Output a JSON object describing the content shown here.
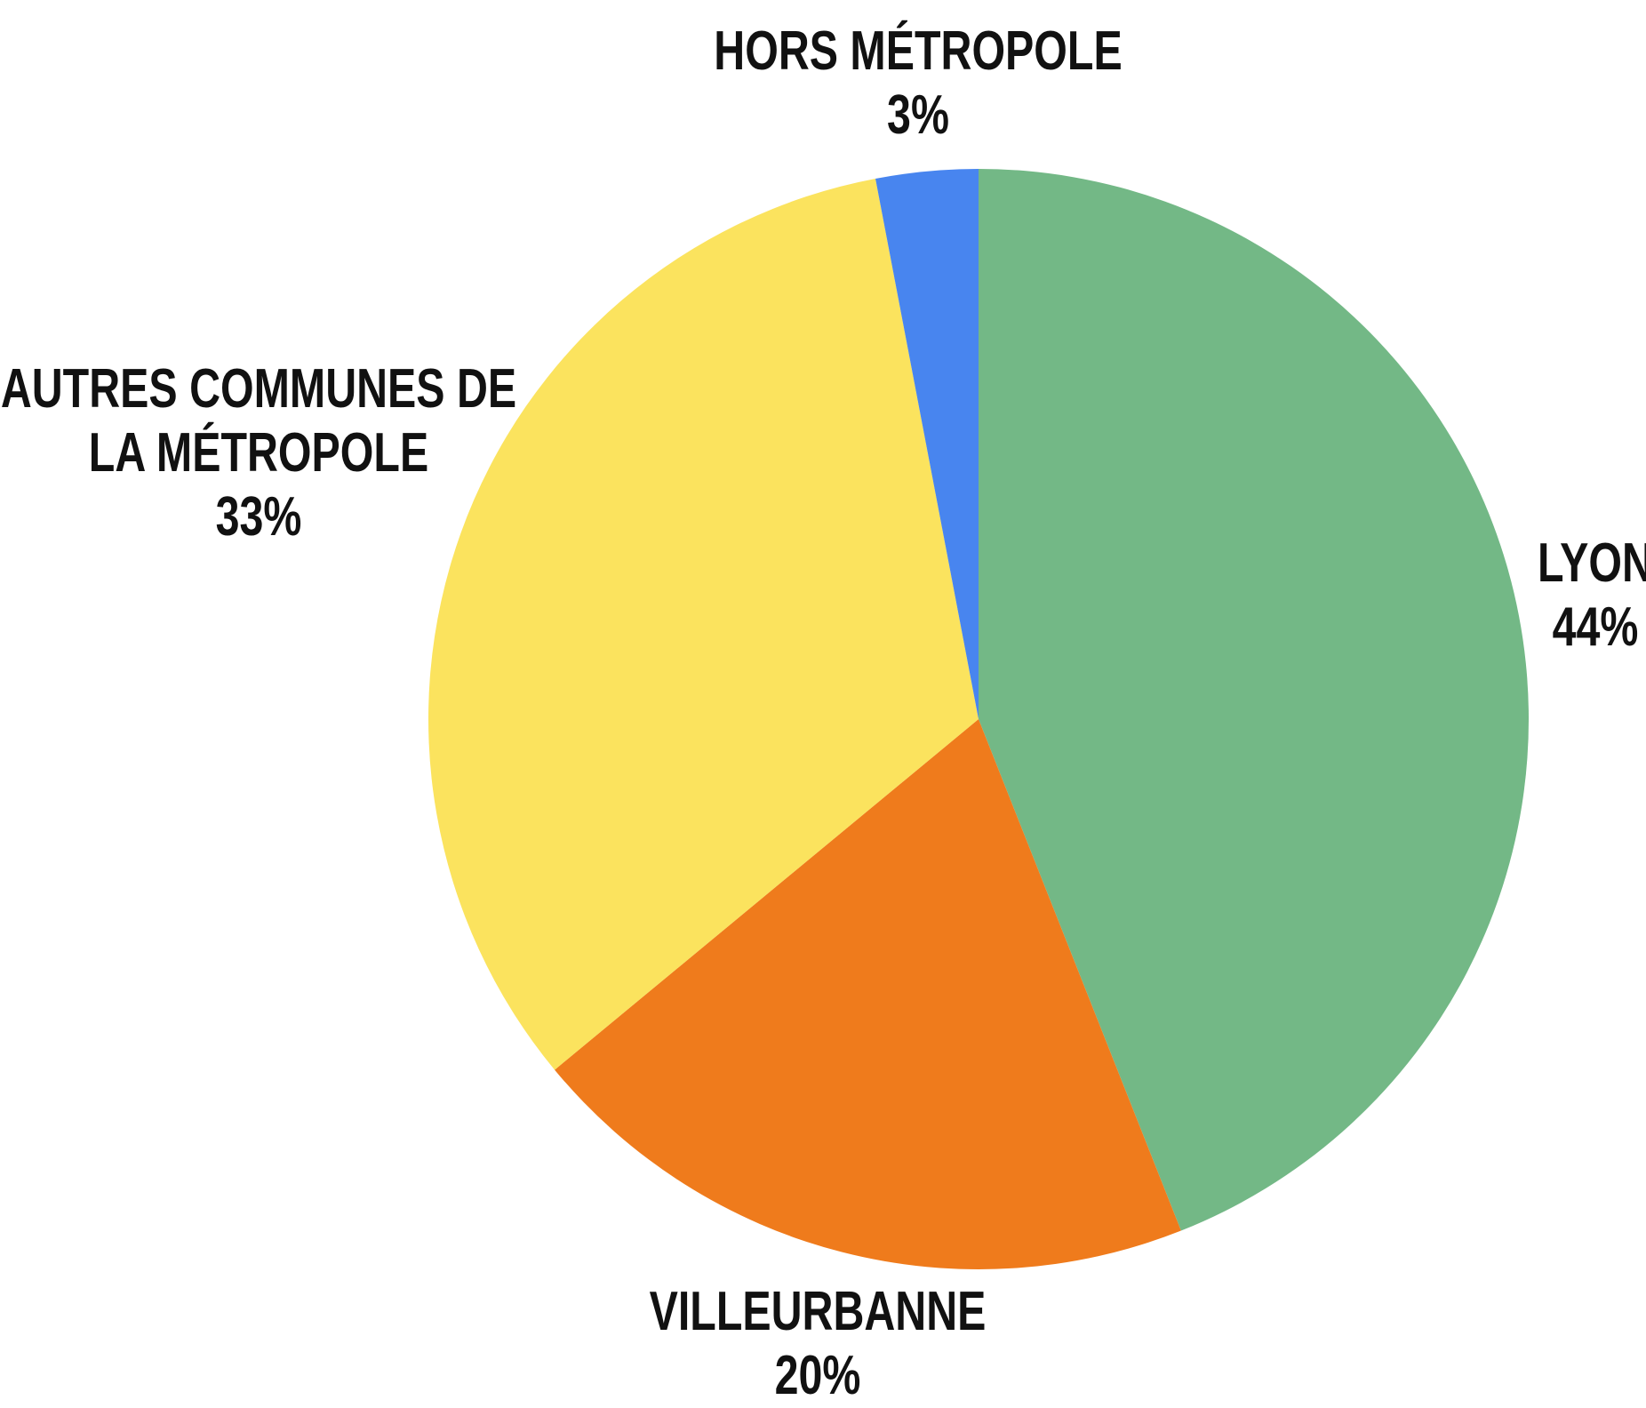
{
  "chart_data": {
    "type": "pie",
    "categories": [
      "LYON",
      "VILLEURBANNE",
      "AUTRES COMMUNES DE LA MÉTROPOLE",
      "HORS MÉTROPOLE"
    ],
    "values": [
      44,
      20,
      33,
      3
    ],
    "value_labels": [
      "44%",
      "20%",
      "33%",
      "3%"
    ],
    "colors": [
      "#73b886",
      "#ef7b1c",
      "#fbe35e",
      "#4885ef"
    ]
  }
}
